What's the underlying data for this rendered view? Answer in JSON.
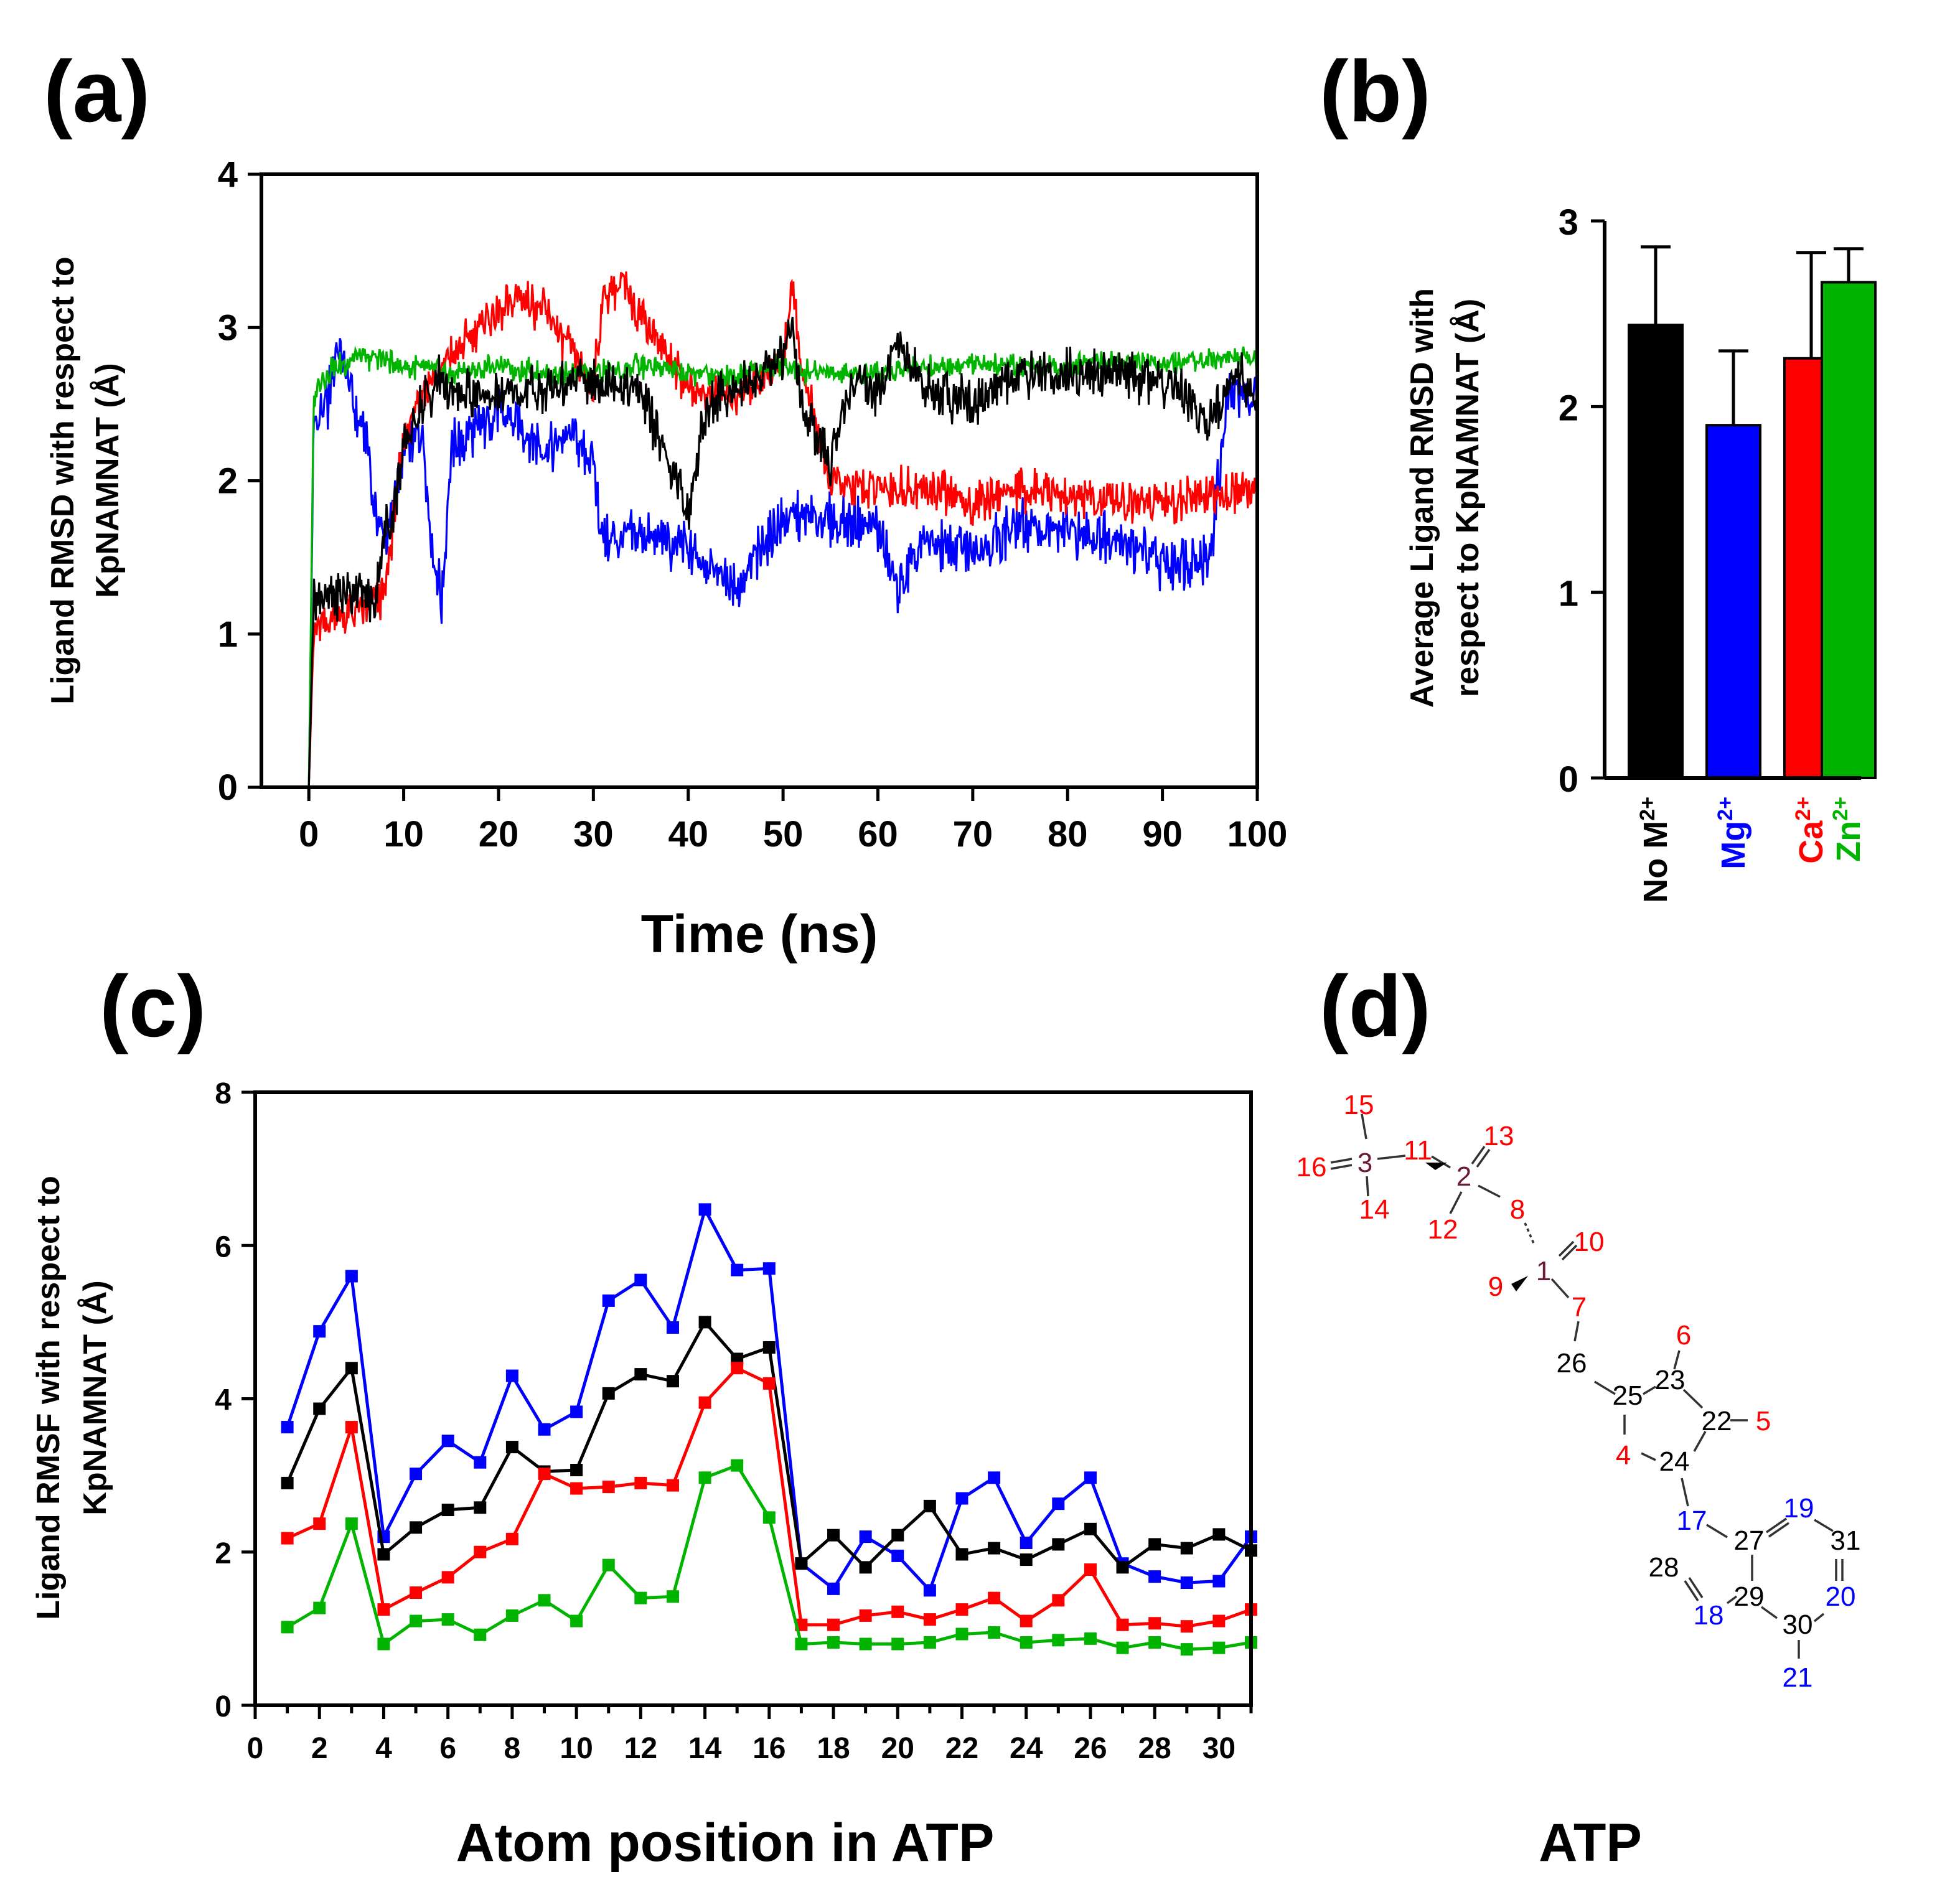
{
  "panels": {
    "a": "(a)",
    "b": "(b)",
    "c": "(c)",
    "d": "(d)"
  },
  "colors": {
    "No M2+": "#000000",
    "Mg2+": "#0000ff",
    "Ca2+": "#ff0000",
    "Zn2+": "#00b400"
  },
  "chart_data": [
    {
      "id": "a",
      "type": "line",
      "xlabel": "Time (ns)",
      "ylabel_line1": "Ligand RMSD with respect to",
      "ylabel_line2": "KpNAMNAT (Å)",
      "xlim": [
        -5,
        100
      ],
      "ylim": [
        0,
        4
      ],
      "xticks": [
        "0",
        "10",
        "20",
        "30",
        "40",
        "50",
        "60",
        "70",
        "80",
        "90",
        "100"
      ],
      "yticks": [
        "0",
        "1",
        "2",
        "3",
        "4"
      ],
      "series": [
        {
          "name": "Mg2+",
          "color": "#0000ff",
          "x": [
            0,
            0.5,
            1,
            2,
            3,
            4,
            5,
            6,
            7,
            8,
            9,
            10,
            12,
            13,
            14,
            15,
            17,
            20,
            25,
            28,
            30,
            31,
            33,
            35,
            40,
            45,
            50,
            55,
            60,
            62,
            65,
            70,
            75,
            80,
            85,
            90,
            95,
            97,
            100
          ],
          "y": [
            0,
            2.3,
            2.4,
            2.5,
            2.9,
            2.7,
            2.4,
            2.3,
            1.8,
            1.6,
            1.9,
            2.2,
            2.3,
            1.6,
            1.2,
            2.2,
            2.3,
            2.45,
            2.2,
            2.3,
            2.1,
            1.6,
            1.6,
            1.65,
            1.55,
            1.3,
            1.75,
            1.75,
            1.7,
            1.3,
            1.6,
            1.55,
            1.7,
            1.65,
            1.65,
            1.45,
            1.5,
            2.6,
            2.55
          ]
        },
        {
          "name": "Ca2+",
          "color": "#ff0000",
          "x": [
            0,
            0.5,
            1,
            3,
            5,
            8,
            10,
            12,
            15,
            18,
            20,
            22,
            25,
            28,
            30,
            31,
            33,
            35,
            37,
            40,
            45,
            50,
            51,
            52,
            55,
            57,
            60,
            65,
            70,
            75,
            80,
            85,
            90,
            95,
            100
          ],
          "y": [
            0,
            1,
            1.05,
            1.1,
            1.15,
            1.25,
            2.3,
            2.6,
            2.8,
            3.0,
            3.1,
            3.2,
            3.1,
            2.8,
            2.6,
            3.2,
            3.3,
            3.1,
            2.9,
            2.6,
            2.55,
            2.8,
            3.3,
            2.7,
            2.0,
            1.95,
            1.95,
            1.95,
            1.85,
            1.95,
            1.9,
            1.85,
            1.85,
            1.9,
            1.95
          ]
        },
        {
          "name": "Zn2+",
          "color": "#00b400",
          "x": [
            0,
            0.5,
            1,
            2,
            3,
            5,
            7,
            10,
            15,
            20,
            25,
            30,
            35,
            40,
            45,
            50,
            55,
            60,
            65,
            70,
            75,
            80,
            85,
            90,
            95,
            100
          ],
          "y": [
            0,
            2.5,
            2.65,
            2.7,
            2.75,
            2.8,
            2.8,
            2.75,
            2.7,
            2.75,
            2.7,
            2.7,
            2.75,
            2.7,
            2.7,
            2.75,
            2.7,
            2.7,
            2.75,
            2.75,
            2.75,
            2.75,
            2.8,
            2.75,
            2.8,
            2.8
          ]
        },
        {
          "name": "No M2+",
          "color": "#000000",
          "x": [
            0,
            0.5,
            1,
            3,
            5,
            7,
            8,
            9,
            10,
            12,
            14,
            15,
            20,
            25,
            30,
            35,
            38,
            40,
            42,
            45,
            50,
            51,
            52,
            55,
            57,
            60,
            62,
            65,
            70,
            75,
            80,
            85,
            90,
            95,
            98,
            100
          ],
          "y": [
            0,
            1.2,
            1.25,
            1.25,
            1.3,
            1.2,
            1.7,
            1.8,
            2.2,
            2.5,
            2.7,
            2.55,
            2.55,
            2.6,
            2.65,
            2.6,
            2.1,
            1.8,
            2.5,
            2.6,
            2.8,
            3.0,
            2.5,
            2.1,
            2.6,
            2.6,
            2.9,
            2.6,
            2.5,
            2.7,
            2.7,
            2.7,
            2.65,
            2.4,
            2.7,
            2.5
          ]
        }
      ]
    },
    {
      "id": "b",
      "type": "bar",
      "ylabel_line1": "Average Ligand RMSD with",
      "ylabel_line2": "respect to KpNAMNAT (Å)",
      "ylim": [
        0,
        3
      ],
      "yticks": [
        "0",
        "1",
        "2",
        "3"
      ],
      "categories": [
        {
          "base": "No M",
          "sup": "2+",
          "color": "#000000"
        },
        {
          "base": "Mg",
          "sup": "2+",
          "color": "#0000ff"
        },
        {
          "base": "Ca",
          "sup": "2+",
          "color": "#ff0000"
        },
        {
          "base": "Zn",
          "sup": "2+",
          "color": "#00b400"
        }
      ],
      "values": [
        2.44,
        1.9,
        2.26,
        2.67
      ],
      "errors": [
        0.42,
        0.4,
        0.57,
        0.18
      ]
    },
    {
      "id": "c",
      "type": "line",
      "xlabel": "Atom position in ATP",
      "ylabel_line1": "Ligand RMSF with respect to",
      "ylabel_line2": "KpNAMNAT (Å)",
      "xlim": [
        0,
        31
      ],
      "ylim": [
        0,
        8
      ],
      "xticks": [
        "0",
        "2",
        "4",
        "6",
        "8",
        "10",
        "12",
        "14",
        "16",
        "18",
        "20",
        "22",
        "24",
        "26",
        "28",
        "30"
      ],
      "yticks": [
        "0",
        "2",
        "4",
        "6",
        "8"
      ],
      "x": [
        1,
        2,
        3,
        4,
        5,
        6,
        7,
        8,
        9,
        10,
        11,
        12,
        13,
        14,
        15,
        16,
        17,
        18,
        19,
        20,
        21,
        22,
        23,
        24,
        25,
        26,
        27,
        28,
        29,
        30,
        31
      ],
      "series": [
        {
          "name": "Mg2+",
          "color": "#0000ff",
          "values": [
            3.63,
            4.88,
            5.6,
            2.2,
            3.02,
            3.45,
            3.17,
            4.3,
            3.6,
            3.83,
            5.28,
            5.55,
            4.93,
            6.47,
            5.68,
            5.7,
            1.85,
            1.52,
            2.2,
            1.95,
            1.5,
            2.7,
            2.97,
            2.12,
            2.63,
            2.97,
            1.85,
            1.68,
            1.6,
            1.62,
            2.2
          ]
        },
        {
          "name": "No M2+",
          "color": "#000000",
          "values": [
            2.9,
            3.87,
            4.4,
            1.97,
            2.32,
            2.55,
            2.58,
            3.37,
            3.05,
            3.07,
            4.07,
            4.32,
            4.23,
            5.0,
            4.52,
            4.67,
            1.85,
            2.22,
            1.8,
            2.22,
            2.6,
            1.97,
            2.05,
            1.9,
            2.1,
            2.3,
            1.8,
            2.1,
            2.05,
            2.23,
            2.02
          ]
        },
        {
          "name": "Ca2+",
          "color": "#ff0000",
          "values": [
            2.18,
            2.37,
            3.63,
            1.25,
            1.47,
            1.67,
            2.0,
            2.17,
            3.02,
            2.83,
            2.85,
            2.9,
            2.87,
            3.95,
            4.4,
            4.2,
            1.05,
            1.05,
            1.17,
            1.22,
            1.12,
            1.25,
            1.4,
            1.1,
            1.37,
            1.77,
            1.05,
            1.07,
            1.03,
            1.1,
            1.25
          ]
        },
        {
          "name": "Zn2+",
          "color": "#00b400",
          "values": [
            1.02,
            1.27,
            2.37,
            0.8,
            1.1,
            1.12,
            0.92,
            1.17,
            1.37,
            1.1,
            1.83,
            1.4,
            1.42,
            2.97,
            3.13,
            2.45,
            0.8,
            0.82,
            0.8,
            0.8,
            0.82,
            0.93,
            0.95,
            0.82,
            0.85,
            0.87,
            0.75,
            0.82,
            0.73,
            0.75,
            0.82
          ]
        }
      ]
    }
  ],
  "molecule": {
    "caption": "ATP",
    "atoms": [
      {
        "label": "15",
        "color": "#ff0000"
      },
      {
        "label": "16",
        "color": "#ff0000"
      },
      {
        "label": "3",
        "color": "#6b1a3a"
      },
      {
        "label": "11",
        "color": "#ff0000"
      },
      {
        "label": "14",
        "color": "#ff0000"
      },
      {
        "label": "13",
        "color": "#ff0000"
      },
      {
        "label": "2",
        "color": "#6b1a3a"
      },
      {
        "label": "8",
        "color": "#ff0000"
      },
      {
        "label": "12",
        "color": "#ff0000"
      },
      {
        "label": "10",
        "color": "#ff0000"
      },
      {
        "label": "1",
        "color": "#6b1a3a"
      },
      {
        "label": "9",
        "color": "#ff0000"
      },
      {
        "label": "7",
        "color": "#ff0000"
      },
      {
        "label": "6",
        "color": "#ff0000"
      },
      {
        "label": "26",
        "color": "#000000"
      },
      {
        "label": "25",
        "color": "#000000"
      },
      {
        "label": "23",
        "color": "#000000"
      },
      {
        "label": "22",
        "color": "#000000"
      },
      {
        "label": "5",
        "color": "#ff0000"
      },
      {
        "label": "4",
        "color": "#ff0000"
      },
      {
        "label": "24",
        "color": "#000000"
      },
      {
        "label": "17",
        "color": "#0000ff"
      },
      {
        "label": "19",
        "color": "#0000ff"
      },
      {
        "label": "27",
        "color": "#000000"
      },
      {
        "label": "31",
        "color": "#000000"
      },
      {
        "label": "28",
        "color": "#000000"
      },
      {
        "label": "20",
        "color": "#0000ff"
      },
      {
        "label": "29",
        "color": "#000000"
      },
      {
        "label": "18",
        "color": "#0000ff"
      },
      {
        "label": "30",
        "color": "#000000"
      },
      {
        "label": "21",
        "color": "#0000ff"
      }
    ]
  }
}
